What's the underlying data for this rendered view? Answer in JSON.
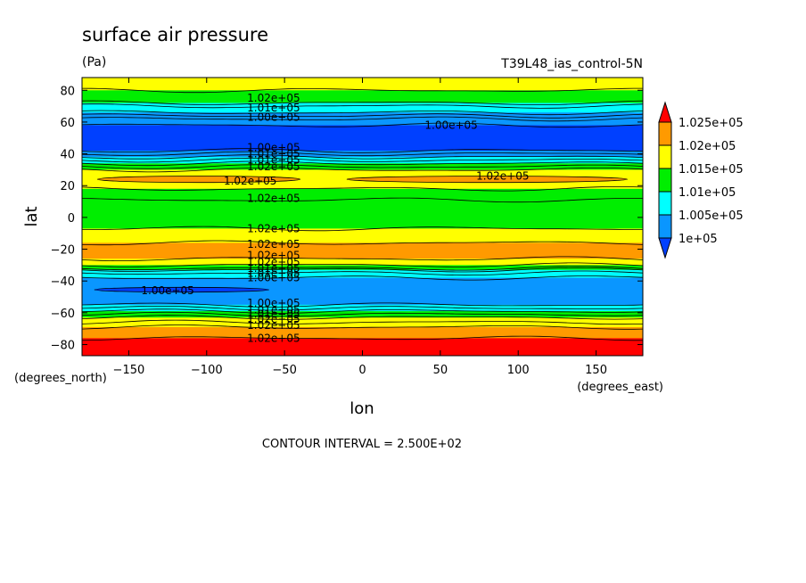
{
  "chart_data": {
    "type": "heatmap",
    "title": "surface air pressure",
    "units": "(Pa)",
    "run_label": "T39L48_ias_control-5N",
    "xlabel": "lon",
    "ylabel": "lat",
    "x_units": "(degrees_east)",
    "y_units": "(degrees_north)",
    "xlim": [
      -180,
      180
    ],
    "ylim": [
      -87,
      88
    ],
    "xticks": [
      -150,
      -100,
      -50,
      0,
      50,
      100,
      150
    ],
    "yticks": [
      -80,
      -60,
      -40,
      -20,
      0,
      20,
      40,
      60,
      80
    ],
    "footer": "CONTOUR INTERVAL = 2.500E+02",
    "colorbar": {
      "levels": [
        "1.025e+05",
        "1.02e+05",
        "1.015e+05",
        "1.01e+05",
        "1.005e+05",
        "1e+05"
      ],
      "colors": [
        "#ff0000",
        "#ff9a00",
        "#ffff00",
        "#00ee00",
        "#00ffff",
        "#0a96ff",
        "#0040ff"
      ]
    },
    "bands": [
      {
        "lat": [
          80,
          88
        ],
        "pa": 101800,
        "color": "#ffff00"
      },
      {
        "lat": [
          72,
          80
        ],
        "pa": 101600,
        "color": "#00ee00"
      },
      {
        "lat": [
          66,
          72
        ],
        "pa": 101000,
        "color": "#00ffff"
      },
      {
        "lat": [
          58,
          66
        ],
        "pa": 100500,
        "color": "#0a96ff"
      },
      {
        "lat": [
          42,
          58
        ],
        "pa": 99800,
        "color": "#0040ff"
      },
      {
        "lat": [
          38,
          42
        ],
        "pa": 100500,
        "color": "#0a96ff"
      },
      {
        "lat": [
          34,
          38
        ],
        "pa": 101000,
        "color": "#00ffff"
      },
      {
        "lat": [
          30,
          34
        ],
        "pa": 101300,
        "color": "#00ee00"
      },
      {
        "lat": [
          18,
          30
        ],
        "pa": 101900,
        "color": "#ffff00"
      },
      {
        "lat": [
          11,
          18
        ],
        "pa": 101600,
        "color": "#00ee00"
      },
      {
        "lat": [
          -7,
          11
        ],
        "pa": 101300,
        "color": "#00ee00"
      },
      {
        "lat": [
          -16,
          -7
        ],
        "pa": 101800,
        "color": "#ffff00"
      },
      {
        "lat": [
          -26,
          -16
        ],
        "pa": 102100,
        "color": "#ff9a00"
      },
      {
        "lat": [
          -30,
          -26
        ],
        "pa": 101800,
        "color": "#ffff00"
      },
      {
        "lat": [
          -33,
          -30
        ],
        "pa": 101300,
        "color": "#00ee00"
      },
      {
        "lat": [
          -38,
          -33
        ],
        "pa": 100800,
        "color": "#00ffff"
      },
      {
        "lat": [
          -55,
          -38
        ],
        "pa": 100200,
        "color": "#0a96ff"
      },
      {
        "lat": [
          -59,
          -55
        ],
        "pa": 100800,
        "color": "#00ffff"
      },
      {
        "lat": [
          -63,
          -59
        ],
        "pa": 101300,
        "color": "#00ee00"
      },
      {
        "lat": [
          -69,
          -63
        ],
        "pa": 101800,
        "color": "#ffff00"
      },
      {
        "lat": [
          -76,
          -69
        ],
        "pa": 102300,
        "color": "#ff9a00"
      },
      {
        "lat": [
          -87,
          -76
        ],
        "pa": 102600,
        "color": "#ff0000"
      }
    ],
    "contour_lats": [
      80,
      72,
      70,
      66,
      64,
      62,
      58,
      42,
      40,
      38,
      36,
      34,
      32,
      30,
      18,
      11,
      -7,
      -16,
      -26,
      -30,
      -32,
      -33,
      -35,
      -38,
      -55,
      -57,
      -59,
      -61,
      -63,
      -66,
      -69,
      -76
    ],
    "features": [
      {
        "kind": "orange-blob",
        "lon": [
          -170,
          -40
        ],
        "lat": [
          22,
          26
        ],
        "color": "#ff9a00"
      },
      {
        "kind": "orange-blob",
        "lon": [
          -10,
          170
        ],
        "lat": [
          22,
          26
        ],
        "color": "#ff9a00"
      },
      {
        "kind": "low-blob",
        "lon": [
          -172,
          -60
        ],
        "lat": [
          -47,
          -44
        ],
        "color": "#0040ff"
      }
    ],
    "contour_labels": [
      {
        "text": "1.02e+05",
        "lon": -57,
        "lat": 75
      },
      {
        "text": "1.01e+05",
        "lon": -57,
        "lat": 69
      },
      {
        "text": "1.00e+05",
        "lon": -57,
        "lat": 63
      },
      {
        "text": "1.00e+05",
        "lon": 57,
        "lat": 58
      },
      {
        "text": "1.00e+05",
        "lon": -57,
        "lat": 44
      },
      {
        "text": "1.01e+05",
        "lon": -57,
        "lat": 40
      },
      {
        "text": "1.01e+05",
        "lon": -57,
        "lat": 36
      },
      {
        "text": "1.02e+05",
        "lon": -57,
        "lat": 32
      },
      {
        "text": "1.02e+05",
        "lon": -72,
        "lat": 23
      },
      {
        "text": "1.02e+05",
        "lon": 90,
        "lat": 26
      },
      {
        "text": "1.02e+05",
        "lon": -57,
        "lat": 12
      },
      {
        "text": "1.02e+05",
        "lon": -57,
        "lat": -7
      },
      {
        "text": "1.02e+05",
        "lon": -57,
        "lat": -17
      },
      {
        "text": "1.02e+05",
        "lon": -57,
        "lat": -24
      },
      {
        "text": "1.02e+05",
        "lon": -57,
        "lat": -28
      },
      {
        "text": "1.01e+05",
        "lon": -57,
        "lat": -32
      },
      {
        "text": "1.01e+05",
        "lon": -57,
        "lat": -35
      },
      {
        "text": "1.00e+05",
        "lon": -57,
        "lat": -38
      },
      {
        "text": "1.00e+05",
        "lon": -125,
        "lat": -46
      },
      {
        "text": "1.00e+05",
        "lon": -57,
        "lat": -54
      },
      {
        "text": "1.01e+05",
        "lon": -57,
        "lat": -58
      },
      {
        "text": "1.01e+05",
        "lon": -57,
        "lat": -61
      },
      {
        "text": "1.02e+05",
        "lon": -57,
        "lat": -64
      },
      {
        "text": "1.02e+05",
        "lon": -57,
        "lat": -68
      },
      {
        "text": "1.02e+05",
        "lon": -57,
        "lat": -76
      }
    ]
  }
}
